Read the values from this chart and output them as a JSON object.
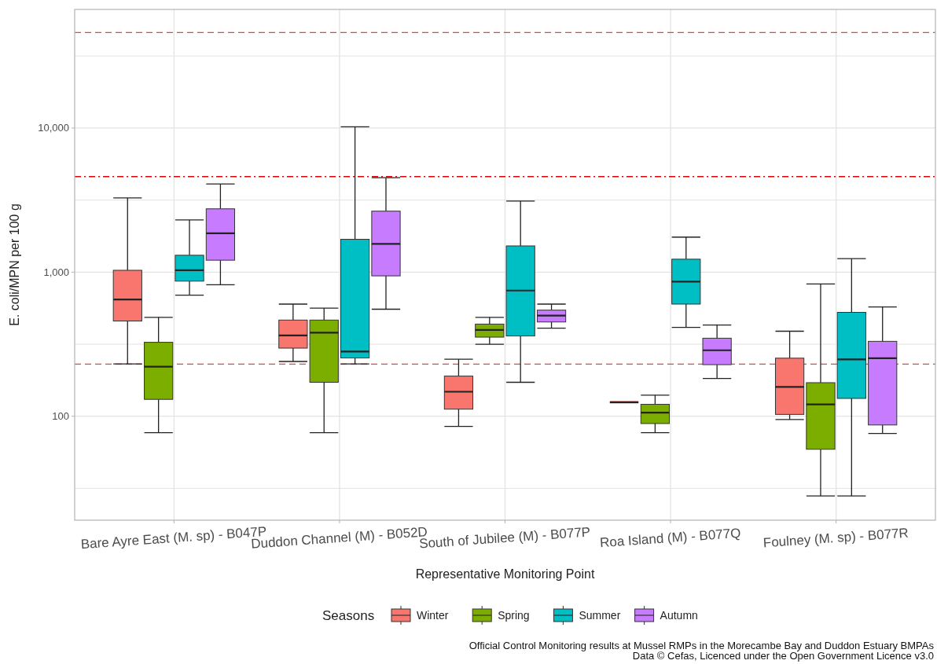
{
  "chart_data": {
    "type": "box",
    "xlabel": "Representative Monitoring Point",
    "ylabel": "E. coli/MPN per 100 g",
    "legend_title": "Seasons",
    "legend": "bottom",
    "grid": true,
    "log": "y",
    "categories": [
      "Bare Ayre East (M. sp) - B047P",
      "Duddon Channel (M) - B052D",
      "South of Jubilee (M) - B077P",
      "Roa Island (M) - B077Q",
      "Foulney (M. sp) - B077R"
    ],
    "ylim": [
      19,
      66500
    ],
    "yticks": [
      {
        "value": 31.62,
        "label": null
      },
      100,
      {
        "value": 316.2,
        "label": null
      },
      {
        "value": 1000,
        "label": "1,000"
      },
      {
        "value": 3162,
        "label": null
      },
      {
        "value": 10000,
        "label": "10,000"
      },
      {
        "value": 31623,
        "label": null
      }
    ],
    "series": [
      {
        "name": "Winter",
        "color": "#f8766d",
        "boxes": [
          {
            "low": 231,
            "q1": 458,
            "median": 646,
            "q3": 1030,
            "high": 3270
          },
          {
            "low": 240,
            "q1": 297,
            "median": 364,
            "q3": 465,
            "high": 600
          },
          {
            "low": 85,
            "q1": 112,
            "median": 148,
            "q3": 190,
            "high": 249
          },
          {
            "low": 125,
            "q1": 125,
            "median": 125,
            "q3": 125,
            "high": 125
          },
          {
            "low": 95,
            "q1": 103,
            "median": 160,
            "q3": 253,
            "high": 389
          }
        ]
      },
      {
        "name": "Spring",
        "color": "#7cae00",
        "boxes": [
          {
            "low": 77,
            "q1": 131,
            "median": 221,
            "q3": 326,
            "high": 486
          },
          {
            "low": 77,
            "q1": 172,
            "median": 380,
            "q3": 465,
            "high": 563
          },
          {
            "low": 316,
            "q1": 354,
            "median": 397,
            "q3": 436,
            "high": 486
          },
          {
            "low": 77,
            "q1": 89,
            "median": 106,
            "q3": 121,
            "high": 140
          },
          {
            "low": 28,
            "q1": 59,
            "median": 121,
            "q3": 171,
            "high": 827
          }
        ]
      },
      {
        "name": "Summer",
        "color": "#00bfc4",
        "boxes": [
          {
            "low": 693,
            "q1": 866,
            "median": 1030,
            "q3": 1310,
            "high": 2300
          },
          {
            "low": 231,
            "q1": 254,
            "median": 281,
            "q3": 1690,
            "high": 10200
          },
          {
            "low": 172,
            "q1": 361,
            "median": 745,
            "q3": 1520,
            "high": 3110
          },
          {
            "low": 414,
            "q1": 600,
            "median": 859,
            "q3": 1230,
            "high": 1750
          },
          {
            "low": 28,
            "q1": 133,
            "median": 248,
            "q3": 526,
            "high": 1240
          }
        ]
      },
      {
        "name": "Autumn",
        "color": "#c77cff",
        "boxes": [
          {
            "low": 817,
            "q1": 1210,
            "median": 1860,
            "q3": 2750,
            "high": 4090
          },
          {
            "low": 553,
            "q1": 942,
            "median": 1570,
            "q3": 2650,
            "high": 4520
          },
          {
            "low": 409,
            "q1": 451,
            "median": 499,
            "q3": 545,
            "high": 600
          },
          {
            "low": 183,
            "q1": 228,
            "median": 287,
            "q3": 348,
            "high": 429
          },
          {
            "low": 76,
            "q1": 87,
            "median": 253,
            "q3": 331,
            "high": 574
          }
        ]
      }
    ],
    "ref_lines": [
      {
        "axis": "y",
        "value": 46000,
        "color": "#f04040",
        "line_style": "dashed"
      },
      {
        "axis": "y",
        "value": 4600,
        "color": "#e00000",
        "line_style": "dashdot"
      },
      {
        "axis": "y",
        "value": 230,
        "color": "#f04040",
        "line_style": "dashed"
      }
    ],
    "annotations": [
      "Official Control Monitoring results at Mussel RMPs in the Morecambe Bay and Duddon Estuary BMPAs",
      "Data © Cefas, Licenced under the Open Government Licence v3.0"
    ]
  }
}
